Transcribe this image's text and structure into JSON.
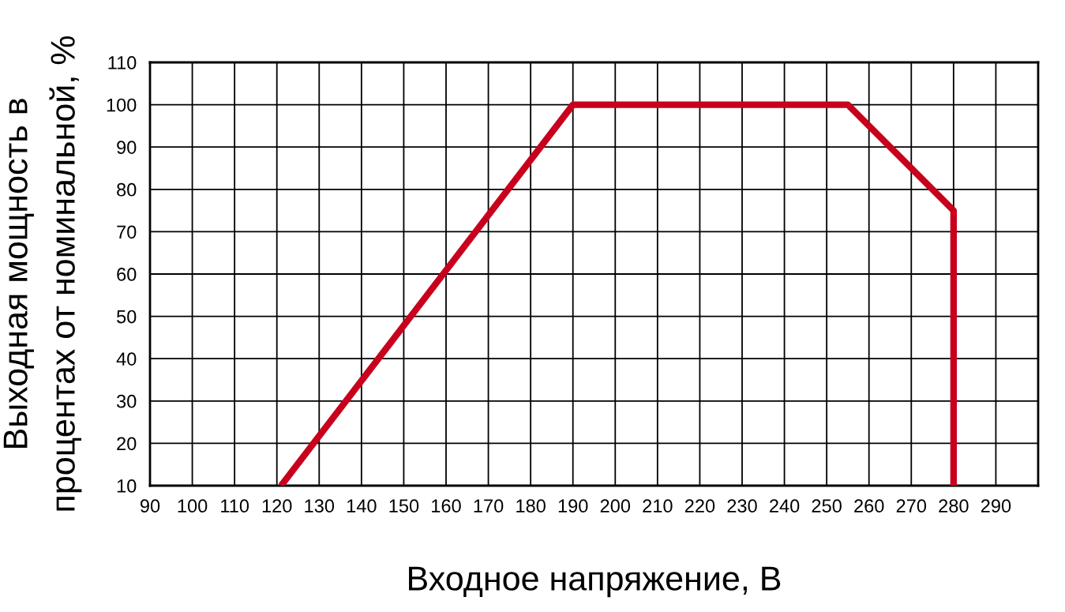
{
  "chart_data": {
    "type": "line",
    "xlabel": "Входное напряжение, В",
    "ylabel": "Выходная мощность в\nпроцентах от номинальной, %",
    "x": [
      121,
      190,
      255,
      280,
      280
    ],
    "series": [
      {
        "color": "#c8001e",
        "values": [
          10,
          100,
          100,
          75,
          10
        ]
      }
    ],
    "xlim": [
      90,
      300
    ],
    "xticks": [
      90,
      100,
      110,
      120,
      130,
      140,
      150,
      160,
      170,
      180,
      190,
      200,
      210,
      220,
      230,
      240,
      250,
      260,
      270,
      280,
      290
    ],
    "ylim": [
      10,
      110
    ],
    "yticks": [
      10,
      20,
      30,
      40,
      50,
      60,
      70,
      80,
      90,
      100,
      110
    ],
    "grid": true,
    "marker": "none",
    "line_style": "solid"
  }
}
